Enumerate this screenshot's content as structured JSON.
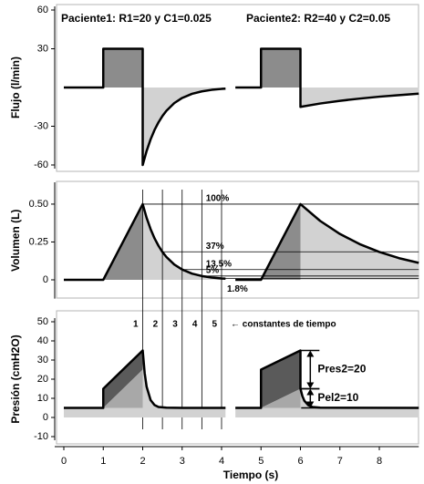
{
  "chart_data": [
    {
      "type": "line",
      "panel_titles": [
        "Paciente1: R1=20 y C1=0.025",
        "Paciente2: R2=40 y C2=0.05"
      ],
      "y_label": "Flujo (l/min)",
      "xlim": [
        0,
        9
      ],
      "ylim": [
        -60,
        60
      ],
      "yticks": [
        -60,
        -30,
        30,
        60
      ],
      "series": [
        {
          "color": "#000000",
          "x": [
            0,
            1,
            1,
            2,
            2,
            2.1,
            2.2,
            2.3,
            2.4,
            2.5,
            2.6,
            2.8,
            3,
            3.25,
            3.5,
            3.75,
            4,
            4.1
          ],
          "values": [
            0,
            0,
            30,
            30,
            -60,
            -49.1,
            -40.2,
            -32.9,
            -27,
            -22.1,
            -18.1,
            -12.1,
            -8.1,
            -4.9,
            -3,
            -1.8,
            -1.1,
            -0.9
          ]
        },
        {
          "color": "#000000",
          "x": [
            4.35,
            5,
            5,
            6,
            6,
            6.5,
            7,
            7.5,
            8,
            8.5,
            9
          ],
          "values": [
            0,
            0,
            30,
            30,
            -15,
            -12.4,
            -10.3,
            -8.6,
            -7.1,
            -5.9,
            -4.8
          ]
        }
      ]
    },
    {
      "type": "line",
      "y_label": "Volumen (L)",
      "xlim": [
        0,
        9
      ],
      "ylim": [
        -0.1,
        0.62
      ],
      "yticks": [
        0,
        0.25,
        {
          "value": 0.5,
          "label": "0.50"
        }
      ],
      "series": [
        {
          "color": "#000000",
          "x": [
            0,
            1,
            2,
            2.1,
            2.2,
            2.3,
            2.4,
            2.5,
            2.6,
            2.8,
            3,
            3.25,
            3.5,
            3.75,
            4,
            4.1
          ],
          "values": [
            0,
            0,
            0.5,
            0.409,
            0.335,
            0.274,
            0.225,
            0.184,
            0.151,
            0.101,
            0.068,
            0.041,
            0.025,
            0.015,
            0.009,
            0.0075
          ]
        },
        {
          "color": "#000000",
          "x": [
            4.35,
            5,
            6,
            6.5,
            7,
            7.5,
            8,
            8.5,
            9
          ],
          "values": [
            0,
            0,
            0.5,
            0.389,
            0.303,
            0.236,
            0.184,
            0.143,
            0.112
          ]
        }
      ],
      "levels": [
        {
          "value": 0.5,
          "label": "100%"
        },
        {
          "value": 0.185,
          "label": "37%"
        },
        {
          "value": 0.0675,
          "label": "13.5%"
        },
        {
          "value": 0.025,
          "label": "5%"
        },
        {
          "value": 0.009,
          "label": "1.8%"
        }
      ],
      "time_constants": {
        "x": [
          2,
          2.5,
          3,
          3.5,
          4
        ],
        "labels": [
          "1",
          "2",
          "3",
          "4",
          "5"
        ],
        "note": "← constantes de tiempo"
      }
    },
    {
      "type": "line",
      "y_label": "Presión (cmH2O)",
      "x_label": "Tiempo (s)",
      "xlim": [
        0,
        9
      ],
      "xticks": [
        0,
        1,
        2,
        3,
        4,
        5,
        6,
        7,
        8
      ],
      "ylim": [
        -10,
        50
      ],
      "yticks": [
        -10,
        0,
        10,
        20,
        30,
        40,
        50
      ],
      "series": [
        {
          "color": "#000000",
          "x": [
            0,
            1,
            1,
            2,
            2.05,
            2.1,
            2.2,
            2.3,
            2.4,
            2.6,
            3,
            4.1
          ],
          "values": [
            5,
            5,
            15,
            35,
            23.2,
            16,
            9.1,
            6.5,
            5.5,
            5.1,
            5,
            5
          ]
        },
        {
          "color": "#000000",
          "x": [
            4.35,
            5,
            5,
            6,
            6,
            6.05,
            6.1,
            6.2,
            6.3,
            6.5,
            9
          ],
          "values": [
            5,
            5,
            25,
            35,
            15,
            11.1,
            8.7,
            6.4,
            5.5,
            5.1,
            5
          ]
        }
      ],
      "elastic": [
        {
          "x": [
            1,
            2
          ],
          "values": [
            5,
            25
          ]
        },
        {
          "x": [
            5,
            6
          ],
          "values": [
            5,
            15
          ]
        }
      ],
      "brackets": [
        {
          "label": "Pres2=20",
          "x": 6.25,
          "from": 15,
          "to": 35
        },
        {
          "label": "Pel2=10",
          "x": 6.25,
          "from": 5,
          "to": 15
        }
      ]
    }
  ]
}
